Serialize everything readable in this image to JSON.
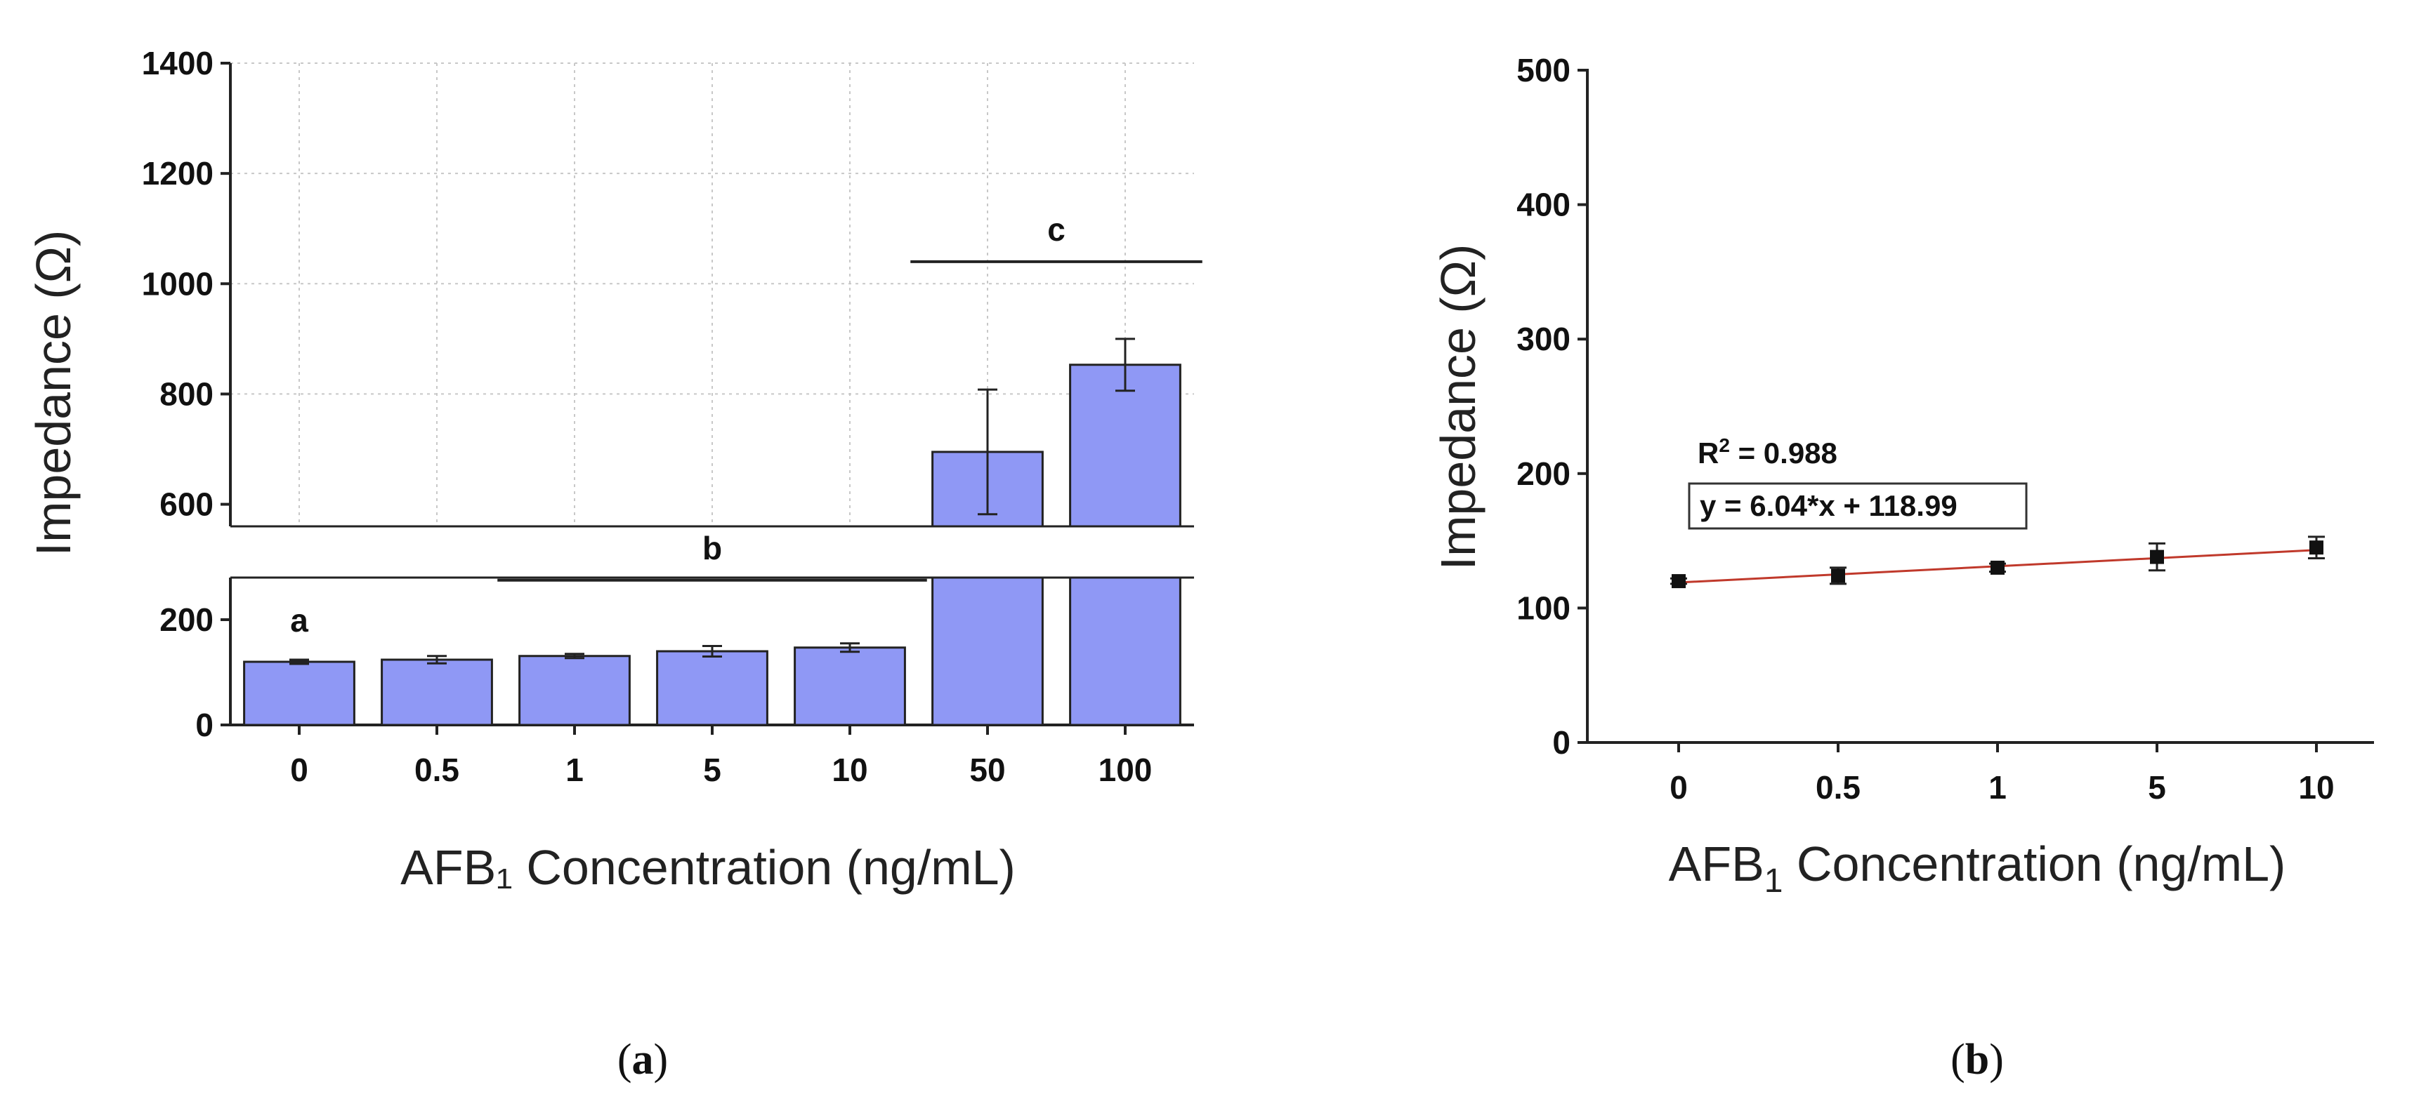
{
  "chart_data": [
    {
      "type": "bar",
      "panel_label_open": "(",
      "panel_label_letter": "a",
      "panel_label_close": ")",
      "categories": [
        "0",
        "0.5",
        "1",
        "5",
        "10",
        "50",
        "100"
      ],
      "values": [
        120,
        124,
        131,
        140,
        147,
        695,
        853
      ],
      "errors": [
        4,
        7,
        4,
        10,
        8,
        113,
        47
      ],
      "xlabel": "AFB₁ Concentration (ng/mL)",
      "ylabel": "Impedance (Ω)",
      "axis_break": {
        "lower_range": [
          0,
          280
        ],
        "upper_range": [
          560,
          1400
        ]
      },
      "yticks_lower": [
        "0",
        "200"
      ],
      "yticks_upper": [
        "600",
        "800",
        "1000",
        "1200",
        "1400"
      ],
      "bar_color": "#8f98f5",
      "groups": [
        {
          "label": "a",
          "categories": [
            "0"
          ]
        },
        {
          "label": "b",
          "categories": [
            "1",
            "5",
            "10"
          ]
        },
        {
          "label": "c",
          "categories": [
            "50",
            "100"
          ]
        }
      ]
    },
    {
      "type": "scatter",
      "panel_label_open": "(",
      "panel_label_letter": "b",
      "panel_label_close": ")",
      "categories": [
        "0",
        "0.5",
        "1",
        "5",
        "10"
      ],
      "x": [
        0,
        1,
        2,
        3,
        4
      ],
      "values": [
        120,
        124,
        130,
        138,
        145
      ],
      "errors": [
        2,
        6,
        3,
        10,
        8
      ],
      "ylim": [
        0,
        500
      ],
      "yticks": [
        "0",
        "100",
        "200",
        "300",
        "400",
        "500"
      ],
      "fit": {
        "slope": 6.04,
        "intercept": 118.99,
        "color": "#c0392b"
      },
      "r2_prefix": "R",
      "r2_sup": "2",
      "r2_suffix": " = 0.988",
      "equation": "y = 6.04*x + 118.99",
      "xlabel_main": "AFB",
      "xlabel_sub": "1",
      "xlabel_rest": " Concentration (ng/mL)",
      "ylabel": "Impedance (Ω)"
    }
  ]
}
